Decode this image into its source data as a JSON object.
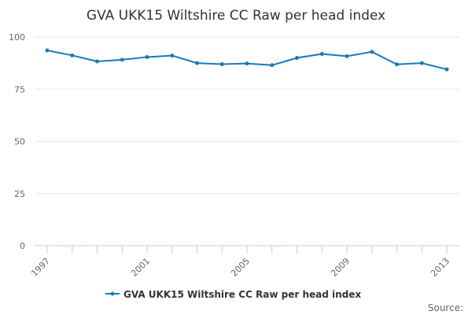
{
  "chart_data": {
    "type": "line",
    "title": "GVA UKK15 Wiltshire CC Raw per head index",
    "xlabel": "",
    "ylabel": "",
    "x": [
      1997,
      1998,
      1999,
      2000,
      2001,
      2002,
      2003,
      2004,
      2005,
      2006,
      2007,
      2008,
      2009,
      2010,
      2011,
      2012,
      2013
    ],
    "x_tick_labels": [
      "1997",
      "2001",
      "2005",
      "2009",
      "2013"
    ],
    "y_tick_labels": [
      "0",
      "25",
      "50",
      "75",
      "100"
    ],
    "ylim": [
      0,
      100
    ],
    "grid": true,
    "legend_position": "bottom",
    "series": [
      {
        "name": "GVA UKK15 Wiltshire CC Raw per head index",
        "color": "#1a7ab5",
        "values": [
          93.6,
          91.2,
          88.3,
          89.1,
          90.4,
          91.1,
          87.5,
          87.0,
          87.3,
          86.5,
          90.0,
          91.9,
          90.8,
          92.9,
          86.9,
          87.5,
          84.5
        ]
      }
    ]
  },
  "source_label": "Source:"
}
